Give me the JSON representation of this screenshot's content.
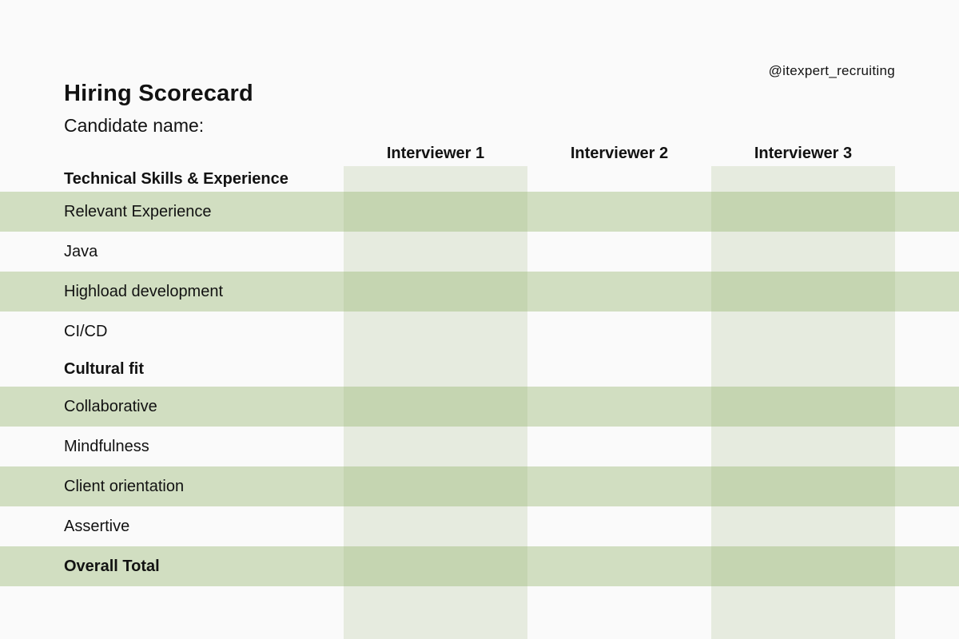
{
  "page": {
    "brand_handle": "@itexpert_recruiting",
    "title": "Hiring Scorecard",
    "subtitle": "Candidate name:"
  },
  "table": {
    "columns": [
      {
        "label": "Interviewer 1",
        "shaded": true
      },
      {
        "label": "Interviewer 2",
        "shaded": false
      },
      {
        "label": "Interviewer 3",
        "shaded": true
      }
    ],
    "rows": [
      {
        "label": "Technical Skills & Experience",
        "type": "section",
        "bold": true,
        "shaded": false
      },
      {
        "label": "Relevant Experience",
        "type": "criterion",
        "bold": false,
        "shaded": true
      },
      {
        "label": "Java",
        "type": "criterion",
        "bold": false,
        "shaded": false
      },
      {
        "label": "Highload development",
        "type": "criterion",
        "bold": false,
        "shaded": true
      },
      {
        "label": "CI/CD",
        "type": "criterion",
        "bold": false,
        "shaded": false
      },
      {
        "label": "Cultural fit",
        "type": "section",
        "bold": true,
        "shaded": false
      },
      {
        "label": "Collaborative",
        "type": "criterion",
        "bold": false,
        "shaded": true
      },
      {
        "label": "Mindfulness",
        "type": "criterion",
        "bold": false,
        "shaded": false
      },
      {
        "label": "Client orientation",
        "type": "criterion",
        "bold": false,
        "shaded": true
      },
      {
        "label": "Assertive",
        "type": "criterion",
        "bold": false,
        "shaded": false
      },
      {
        "label": "Overall Total",
        "type": "total",
        "bold": true,
        "shaded": true
      }
    ]
  },
  "colors": {
    "background": "#fafafa",
    "row_stripe": "#d1dec1",
    "column_band": "#e6ebdf",
    "overlap": "#c5d5b1",
    "text": "#121212"
  }
}
